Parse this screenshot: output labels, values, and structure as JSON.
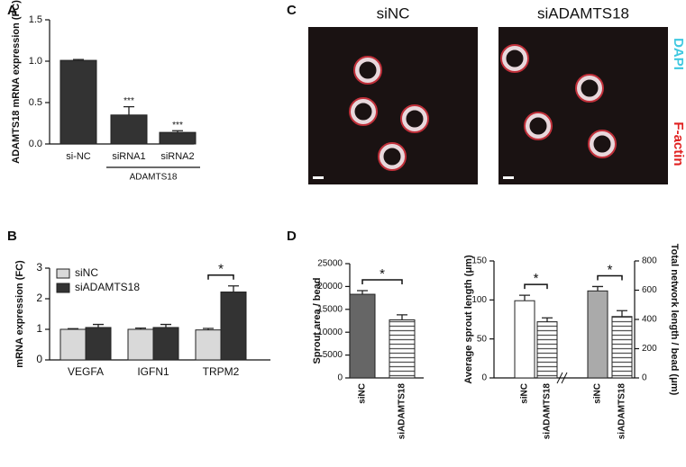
{
  "chart_data": [
    {
      "type": "bar",
      "panel": "A",
      "ylabel": "ADAMTS18 mRNA expression (FC)",
      "categories": [
        "si-NC",
        "siRNA1",
        "siRNA2"
      ],
      "values": [
        1.01,
        0.35,
        0.14
      ],
      "errors": [
        0.01,
        0.1,
        0.02
      ],
      "significance": [
        null,
        "***",
        "***"
      ],
      "group_label": "ADAMTS18",
      "color": "#333333",
      "ylim": [
        0,
        1.5
      ],
      "yticks": [
        {
          "value": 0,
          "label": "0.0"
        },
        {
          "value": 0.5,
          "label": "0.5"
        },
        {
          "value": 1,
          "label": "1.0"
        },
        {
          "value": 1.5,
          "label": "1.5"
        }
      ]
    },
    {
      "type": "bar",
      "panel": "B",
      "ylabel": "mRNA expression (FC)",
      "categories": [
        "VEGFA",
        "IGFN1",
        "TRPM2"
      ],
      "series": [
        {
          "name": "siNC",
          "color": "#d9d9d9",
          "values": [
            1.0,
            1.0,
            0.98
          ],
          "errors": [
            0.02,
            0.04,
            0.05
          ]
        },
        {
          "name": "siADAMTS18",
          "color": "#333333",
          "values": [
            1.06,
            1.06,
            2.22
          ],
          "errors": [
            0.1,
            0.1,
            0.2
          ]
        }
      ],
      "significance": [
        null,
        null,
        "*"
      ],
      "legend": "upper left",
      "ylim": [
        0,
        3
      ],
      "yticks": [
        0,
        1,
        2,
        3
      ]
    },
    {
      "type": "bar",
      "panel": "D",
      "ylabel": "Sprout area / bead",
      "categories": [
        "siNC",
        "siADAMTS18"
      ],
      "values": [
        18300,
        12700
      ],
      "errors": [
        800,
        1100
      ],
      "colors": [
        "#666666",
        "#ffffff"
      ],
      "hatch": [
        false,
        true
      ],
      "significance": "*",
      "ylim": [
        0,
        25000
      ],
      "yticks": [
        0,
        5000,
        10000,
        15000,
        20000,
        25000
      ]
    },
    {
      "type": "bar",
      "ylabel": "Average sprout length (μm)",
      "y2label": "Total network length / bead (μm)",
      "categories": [
        "siNC",
        "siADAMTS18",
        "siNC",
        "siADAMTS18"
      ],
      "series": [
        {
          "values": [
            99,
            72,
            null,
            null
          ],
          "errors": [
            7,
            5,
            null,
            null
          ],
          "colors": [
            "#ffffff",
            "#ffffff",
            null,
            null
          ],
          "hatch": [
            false,
            true,
            false,
            false
          ],
          "significance": "*"
        },
        {
          "axis": "y2",
          "values": [
            null,
            null,
            595,
            420
          ],
          "errors": [
            null,
            null,
            30,
            40
          ],
          "colors": [
            null,
            null,
            "#aaaaaa",
            "#ffffff"
          ],
          "hatch": [
            false,
            false,
            false,
            true
          ],
          "significance": "*"
        }
      ],
      "ylim": [
        0,
        150
      ],
      "yticks": [
        0,
        50,
        100,
        150
      ],
      "y2lim": [
        0,
        800
      ],
      "y2ticks": [
        0,
        200,
        400,
        600,
        800
      ]
    }
  ],
  "panel_c": {
    "panel": "C",
    "titles": [
      "siNC",
      "siADAMTS18"
    ],
    "stains": [
      "DAPI",
      "F-actin"
    ]
  }
}
